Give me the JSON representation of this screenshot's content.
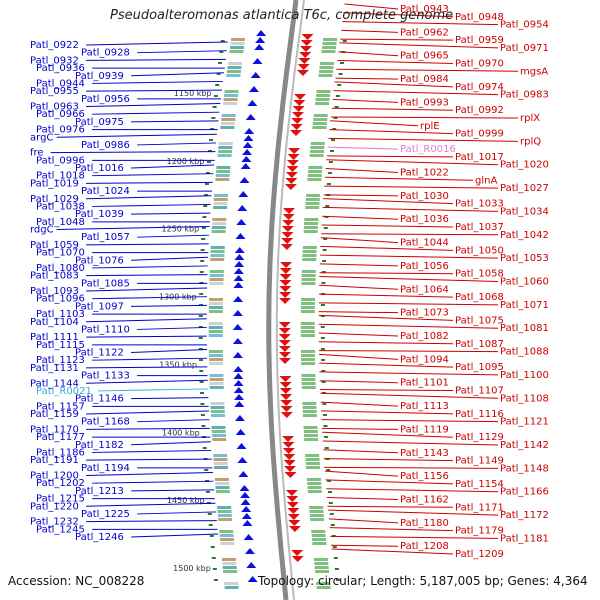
{
  "title": "Pseudoalteromonas atlantica T6c, complete genome",
  "footer": {
    "accession": "Accession: NC_008228",
    "topology": "Topology: circular; Length: 5,187,005 bp; Genes: 4,364"
  },
  "colors": {
    "left": "#0000cc",
    "right": "#cc0000",
    "rna_left": "#33b0d8",
    "rna_right": "#e67ad0",
    "backbone": "#888888",
    "tick": "#2a7a2a"
  },
  "kbp_marks": [
    "1150 kbp",
    "1200 kbp",
    "1250 kbp",
    "1300 kbp",
    "1350 kbp",
    "1400 kbp",
    "1450 kbp",
    "1500 kbp"
  ],
  "left_labels": [
    "Patl_0922",
    "Patl_0928",
    "Patl_0932",
    "Patl_0936",
    "Patl_0939",
    "Patl_0944",
    "Patl_0955",
    "Patl_0956",
    "Patl_0963",
    "Patl_0966",
    "Patl_0975",
    "Patl_0976",
    "argC",
    "Patl_0986",
    "fre",
    "Patl_0996",
    "Patl_1016",
    "Patl_1018",
    "Patl_1019",
    "Patl_1024",
    "Patl_1029",
    "Patl_1038",
    "Patl_1039",
    "Patl_1048",
    "rdgC",
    "Patl_1057",
    "Patl_1059",
    "Patl_1070",
    "Patl_1076",
    "Patl_1080",
    "Patl_1083",
    "Patl_1085",
    "Patl_1093",
    "Patl_1096",
    "Patl_1097",
    "Patl_1103",
    "Patl_1104",
    "Patl_1110",
    "Patl_1111",
    "Patl_1115",
    "Patl_1122",
    "Patl_1123",
    "Patl_1131",
    "Patl_1133",
    "Patl_1144",
    "Patl_R0021",
    "Patl_1146",
    "Patl_1157",
    "Patl_1159",
    "Patl_1168",
    "Patl_1170",
    "Patl_1177",
    "Patl_1182",
    "Patl_1186",
    "Patl_1191",
    "Patl_1194",
    "Patl_1200",
    "Patl_1202",
    "Patl_1213",
    "Patl_1215",
    "Patl_1220",
    "Patl_1225",
    "Patl_1232",
    "Patl_1245",
    "Patl_1246"
  ],
  "right_labels": [
    "Patl_0943",
    "Patl_0948",
    "Patl_0954",
    "Patl_0962",
    "Patl_0959",
    "Patl_0971",
    "Patl_0965",
    "Patl_0970",
    "mgsA",
    "Patl_0984",
    "Patl_0974",
    "Patl_0983",
    "Patl_0993",
    "Patl_0992",
    "rplX",
    "rplE",
    "Patl_0999",
    "rplQ",
    "Patl_R0016",
    "Patl_1017",
    "Patl_1020",
    "Patl_1022",
    "glnA",
    "Patl_1027",
    "Patl_1030",
    "Patl_1033",
    "Patl_1034",
    "Patl_1036",
    "Patl_1037",
    "Patl_1042",
    "Patl_1044",
    "Patl_1050",
    "Patl_1053",
    "Patl_1056",
    "Patl_1058",
    "Patl_1060",
    "Patl_1064",
    "Patl_1068",
    "Patl_1071",
    "Patl_1073",
    "Patl_1075",
    "Patl_1081",
    "Patl_1082",
    "Patl_1087",
    "Patl_1088",
    "Patl_1094",
    "Patl_1095",
    "Patl_1100",
    "Patl_1101",
    "Patl_1107",
    "Patl_1108",
    "Patl_1113",
    "Patl_1116",
    "Patl_1121",
    "Patl_1119",
    "Patl_1129",
    "Patl_1142",
    "Patl_1143",
    "Patl_1149",
    "Patl_1148",
    "Patl_1156",
    "Patl_1154",
    "Patl_1166",
    "Patl_1162",
    "Patl_1171",
    "Patl_1172",
    "Patl_1180",
    "Patl_1179",
    "Patl_1181",
    "Patl_1208",
    "Patl_1209"
  ]
}
